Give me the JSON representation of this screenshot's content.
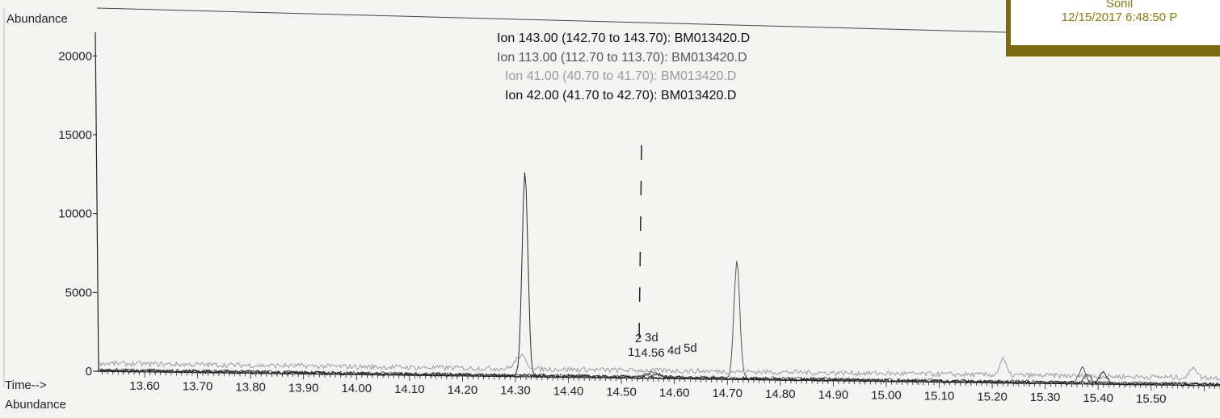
{
  "stamp": {
    "user": "Sonil",
    "datetime": "12/15/2017 6:48:50 P"
  },
  "chart_data": {
    "type": "line",
    "title": "",
    "ylabel": "Abundance",
    "xlabel": "Time-->",
    "bottom_label": "Abundance",
    "xlim": [
      13.51,
      15.63
    ],
    "ylim": [
      0,
      21500
    ],
    "y_ticks": [
      0,
      5000,
      10000,
      15000,
      20000
    ],
    "x_ticks": [
      "13.60",
      "13.70",
      "13.80",
      "13.90",
      "14.00",
      "14.10",
      "14.20",
      "14.30",
      "14.40",
      "14.50",
      "14.60",
      "14.70",
      "14.80",
      "14.90",
      "15.00",
      "15.10",
      "15.20",
      "15.30",
      "15.40",
      "15.50"
    ],
    "legend_placement": "top-center",
    "legend": [
      "Ion 143.00 (142.70 to 143.70): BM013420.D",
      "Ion 113.00 (112.70 to 113.70): BM013420.D",
      "Ion  41.00 (40.70 to 41.70): BM013420.D",
      "Ion  42.00 (41.70 to 42.70): BM013420.D"
    ],
    "series": [
      {
        "name": "Ion 143.00 (142.70 to 143.70): BM013420.D",
        "color": "#2a2a2a",
        "baseline": 50,
        "noise": 90,
        "peaks": [
          [
            14.318,
            12900,
            0.0055
          ],
          [
            14.55,
            250,
            0.008
          ],
          [
            15.38,
            600,
            0.006
          ]
        ]
      },
      {
        "name": "Ion 113.00 (112.70 to 113.70): BM013420.D",
        "color": "#555555",
        "baseline": 100,
        "noise": 100,
        "peaks": [
          [
            14.718,
            7400,
            0.0055
          ],
          [
            14.56,
            300,
            0.008
          ],
          [
            15.37,
            900,
            0.006
          ]
        ]
      },
      {
        "name": "Ion  41.00 (40.70 to 41.70): BM013420.D",
        "color": "#9a9a9a",
        "baseline": 500,
        "noise": 160,
        "peaks": [
          [
            14.31,
            800,
            0.01
          ],
          [
            15.22,
            1000,
            0.006
          ],
          [
            15.58,
            700,
            0.006
          ]
        ]
      },
      {
        "name": "Ion  42.00 (41.70 to 42.70): BM013420.D",
        "color": "#1a1a1a",
        "baseline": 60,
        "noise": 110,
        "peaks": [
          [
            14.57,
            220,
            0.008
          ],
          [
            15.41,
            700,
            0.006
          ]
        ]
      }
    ],
    "marker_time": 14.535,
    "peak_labels": [
      "2",
      "3d",
      "1",
      "14.56",
      "4d",
      "5d"
    ]
  }
}
